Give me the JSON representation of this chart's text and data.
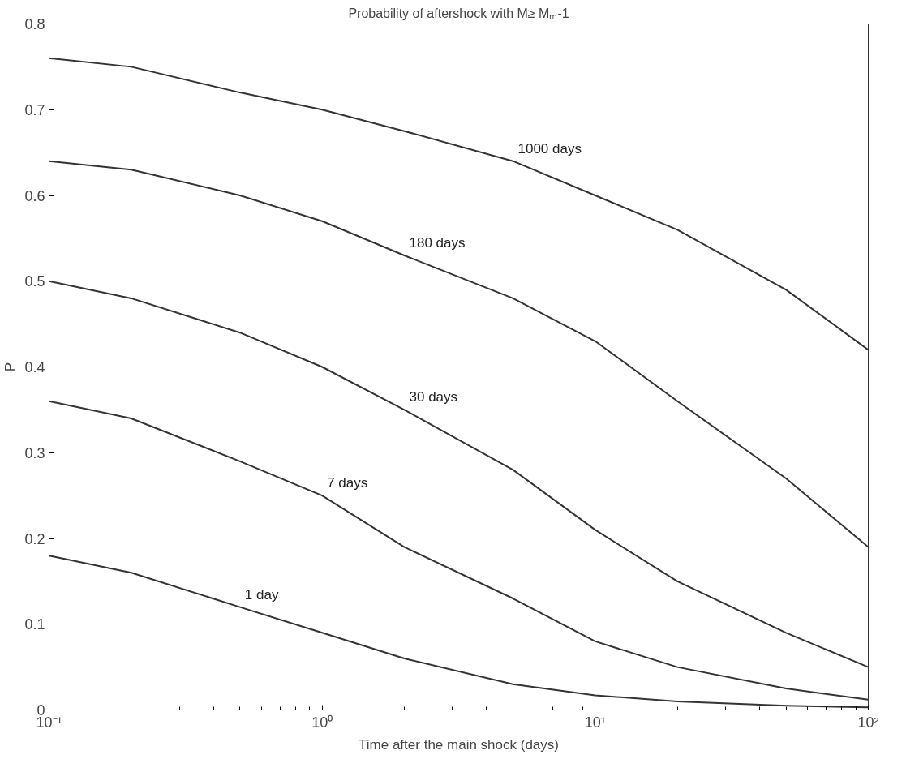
{
  "chart_data": {
    "type": "line",
    "title": "Probability of aftershock with M≥ Mₘ-1",
    "xlabel": "Time after the main shock (days)",
    "ylabel": "P",
    "log": "x",
    "xlim": [
      0.1,
      100
    ],
    "ylim": [
      0,
      0.8
    ],
    "xticks": [
      {
        "value": 0.1,
        "label": "10⁻¹"
      },
      {
        "value": 1,
        "label": "10⁰"
      },
      {
        "value": 10,
        "label": "10¹"
      },
      {
        "value": 100,
        "label": "10²"
      }
    ],
    "yticks": [
      0,
      0.1,
      0.2,
      0.3,
      0.4,
      0.5,
      0.6,
      0.7,
      0.8
    ],
    "grid": false,
    "marker": "none",
    "line_style": "solid",
    "x": [
      0.1,
      0.2,
      0.5,
      1,
      2,
      5,
      10,
      20,
      50,
      100
    ],
    "series": [
      {
        "color": "#333333",
        "values": [
          0.76,
          0.75,
          0.72,
          0.7,
          0.675,
          0.64,
          0.6,
          0.56,
          0.49,
          0.42
        ]
      },
      {
        "color": "#333333",
        "values": [
          0.64,
          0.63,
          0.6,
          0.57,
          0.53,
          0.48,
          0.43,
          0.36,
          0.27,
          0.19
        ]
      },
      {
        "color": "#333333",
        "values": [
          0.5,
          0.48,
          0.44,
          0.4,
          0.35,
          0.28,
          0.21,
          0.15,
          0.09,
          0.05
        ]
      },
      {
        "color": "#333333",
        "values": [
          0.36,
          0.34,
          0.29,
          0.25,
          0.19,
          0.13,
          0.08,
          0.05,
          0.025,
          0.012
        ]
      },
      {
        "color": "#333333",
        "values": [
          0.18,
          0.16,
          0.12,
          0.09,
          0.06,
          0.03,
          0.017,
          0.01,
          0.005,
          0.003
        ]
      }
    ],
    "annotations": [
      {
        "text": "1000 days",
        "x": 5,
        "y": 0.64
      },
      {
        "text": "180 days",
        "x": 2,
        "y": 0.53
      },
      {
        "text": "30 days",
        "x": 2,
        "y": 0.35
      },
      {
        "text": "7 days",
        "x": 1,
        "y": 0.25
      },
      {
        "text": "1 day",
        "x": 0.5,
        "y": 0.12
      }
    ]
  }
}
